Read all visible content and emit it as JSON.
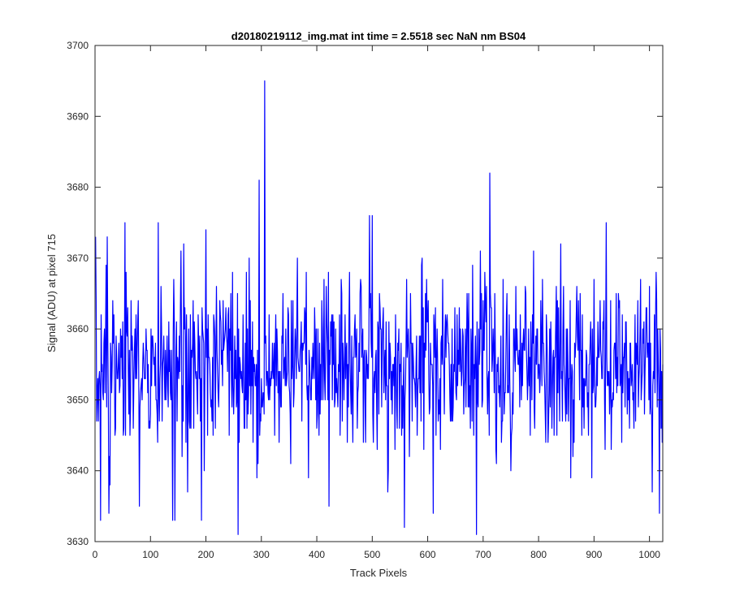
{
  "chart_data": {
    "type": "line",
    "title": "d20180219112_img.mat int time = 2.5518 sec  NaN nm BS04",
    "xlabel": "Track Pixels",
    "ylabel": "Signal (ADU) at pixel 715",
    "xlim": [
      0,
      1024
    ],
    "ylim": [
      3630,
      3700
    ],
    "x_ticks": [
      0,
      100,
      200,
      300,
      400,
      500,
      600,
      700,
      800,
      900,
      1000
    ],
    "x_tick_labels": [
      "0",
      "100",
      "200",
      "300",
      "400",
      "500",
      "600",
      "700",
      "800",
      "900",
      "1000"
    ],
    "y_ticks": [
      3630,
      3640,
      3650,
      3660,
      3670,
      3680,
      3690,
      3700
    ],
    "y_tick_labels": [
      "3630",
      "3640",
      "3650",
      "3660",
      "3670",
      "3680",
      "3690",
      "3700"
    ],
    "grid": false,
    "line_color": "#0000ff",
    "x_start": 1,
    "x_step": 1,
    "noise_center": 3655,
    "noise_std": 6,
    "peaks": [
      {
        "x": 3,
        "y": 3647
      },
      {
        "x": 10,
        "y": 3633
      },
      {
        "x": 20,
        "y": 3669
      },
      {
        "x": 22,
        "y": 3673
      },
      {
        "x": 25,
        "y": 3634
      },
      {
        "x": 54,
        "y": 3675
      },
      {
        "x": 80,
        "y": 3635
      },
      {
        "x": 114,
        "y": 3675
      },
      {
        "x": 140,
        "y": 3633
      },
      {
        "x": 144,
        "y": 3633
      },
      {
        "x": 155,
        "y": 3671
      },
      {
        "x": 192,
        "y": 3633
      },
      {
        "x": 200,
        "y": 3674
      },
      {
        "x": 258,
        "y": 3631
      },
      {
        "x": 296,
        "y": 3681
      },
      {
        "x": 306,
        "y": 3695
      },
      {
        "x": 308,
        "y": 3659
      },
      {
        "x": 422,
        "y": 3635
      },
      {
        "x": 495,
        "y": 3676
      },
      {
        "x": 500,
        "y": 3676
      },
      {
        "x": 558,
        "y": 3632
      },
      {
        "x": 610,
        "y": 3634
      },
      {
        "x": 688,
        "y": 3631
      },
      {
        "x": 712,
        "y": 3682
      },
      {
        "x": 922,
        "y": 3675
      },
      {
        "x": 1005,
        "y": 3637
      },
      {
        "x": 1018,
        "y": 3634
      },
      {
        "x": 1024,
        "y": 3655
      }
    ]
  }
}
